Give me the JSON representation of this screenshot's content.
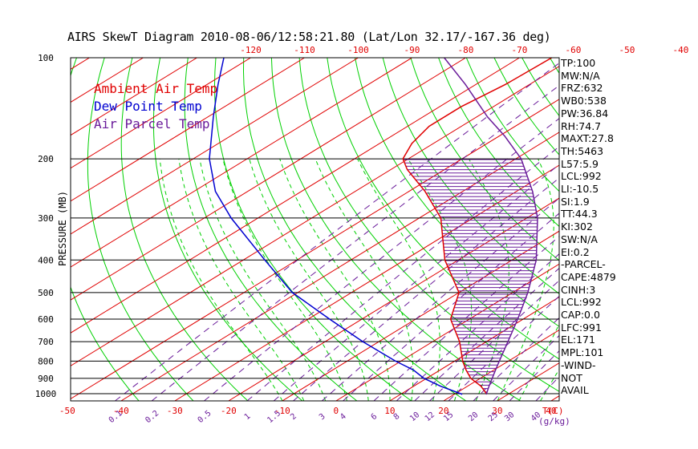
{
  "chart_data": {
    "type": "line",
    "title": "AIRS SkewT Diagram 2010-08-06/12:58:21.80 (Lat/Lon 32.17/-167.36 deg)",
    "ylabel": "PRESSURE (MB)",
    "xlabel": "T(C)",
    "mixing_ratio_unit": "(g/kg)",
    "pressure_ticks": [
      100,
      200,
      300,
      400,
      500,
      600,
      700,
      800,
      900,
      1000
    ],
    "temp_ticks_bottom": [
      -50,
      -40,
      -30,
      -20,
      -10,
      0,
      10,
      20,
      30,
      40
    ],
    "temp_ticks_top": [
      -120,
      -110,
      -100,
      -90,
      -80,
      -70,
      -60,
      -50,
      -40
    ],
    "mixing_ratio_ticks": [
      "0.1",
      "0.2",
      "0.5",
      "1",
      "1.5",
      "2",
      "3",
      "4",
      "6",
      "8",
      "10",
      "12",
      "15",
      "20",
      "25",
      "30",
      "40"
    ],
    "legend": [
      {
        "name": "Ambient Air Temp",
        "color": "#e00000"
      },
      {
        "name": "Dew Point Temp",
        "color": "#0000d0"
      },
      {
        "name": "Air Parcel Temp",
        "color": "#6a1b9a"
      }
    ],
    "series": [
      {
        "name": "Ambient Air Temp",
        "color": "#e00000",
        "points": [
          [
            1005,
            26
          ],
          [
            1000,
            25.8
          ],
          [
            950,
            22.5
          ],
          [
            900,
            18.2
          ],
          [
            850,
            14.8
          ],
          [
            800,
            11.5
          ],
          [
            700,
            5
          ],
          [
            600,
            -3.5
          ],
          [
            500,
            -10
          ],
          [
            400,
            -22.5
          ],
          [
            300,
            -36
          ],
          [
            250,
            -47
          ],
          [
            215,
            -57
          ],
          [
            200,
            -61
          ],
          [
            180,
            -64
          ],
          [
            160,
            -66
          ],
          [
            140,
            -66
          ],
          [
            120,
            -64.5
          ],
          [
            100,
            -64
          ]
        ]
      },
      {
        "name": "Dew Point Temp",
        "color": "#0000d0",
        "points": [
          [
            1005,
            21.5
          ],
          [
            1000,
            21
          ],
          [
            950,
            15
          ],
          [
            900,
            9.5
          ],
          [
            850,
            5
          ],
          [
            800,
            -1
          ],
          [
            700,
            -13
          ],
          [
            600,
            -26
          ],
          [
            500,
            -41
          ],
          [
            400,
            -56
          ],
          [
            300,
            -75
          ],
          [
            250,
            -86
          ],
          [
            200,
            -97
          ],
          [
            150,
            -109
          ],
          [
            120,
            -118
          ],
          [
            100,
            -125
          ]
        ]
      },
      {
        "name": "Air Parcel Temp",
        "color": "#6a1b9a",
        "points": [
          [
            1005,
            26
          ],
          [
            1000,
            25.8
          ],
          [
            950,
            24
          ],
          [
            900,
            22.2
          ],
          [
            850,
            20.3
          ],
          [
            800,
            18.3
          ],
          [
            700,
            14
          ],
          [
            600,
            9
          ],
          [
            500,
            2.8
          ],
          [
            400,
            -5.5
          ],
          [
            300,
            -18
          ],
          [
            250,
            -27
          ],
          [
            200,
            -39
          ],
          [
            171,
            -49
          ],
          [
            150,
            -58
          ],
          [
            120,
            -72
          ],
          [
            100,
            -84
          ]
        ]
      }
    ],
    "ylim": [
      100,
      1050
    ],
    "xlim_bottom": [
      -52,
      42
    ]
  },
  "indices": [
    "TP:100",
    "MW:N/A",
    "FRZ:632",
    "WB0:538",
    "PW:36.84",
    "RH:74.7",
    "MAXT:27.8",
    "TH:5463",
    "L57:5.9",
    "LCL:992",
    "LI:-10.5",
    "SI:1.9",
    "TT:44.3",
    "KI:302",
    "SW:N/A",
    "EI:0.2",
    "-PARCEL-",
    "CAPE:4879",
    "CINH:3",
    "LCL:992",
    "CAP:0.0",
    "LFC:991",
    "EL:171",
    "MPL:101",
    "-WIND-",
    "NOT",
    "AVAIL"
  ]
}
